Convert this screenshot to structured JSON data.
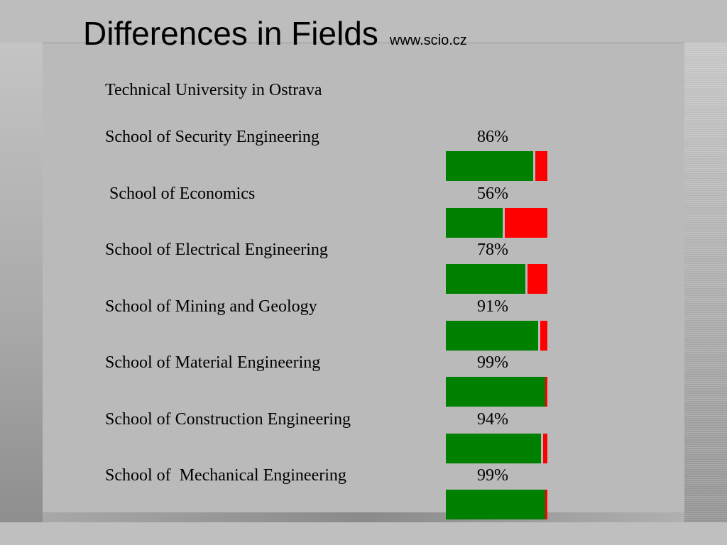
{
  "title": "Differences in Fields",
  "source": "www.scio.cz",
  "university": "Technical University in Ostrava",
  "colors": {
    "pass": "#008000",
    "fail": "#ff0000",
    "background": "#bababa"
  },
  "chart_data": {
    "type": "bar",
    "title": "",
    "xlabel": "",
    "ylabel": "",
    "ylim": [
      0,
      100
    ],
    "categories": [
      "School of Security Engineering",
      " School of Economics",
      "School of Electrical Engineering",
      "School of Mining and Geology",
      "School of Material Engineering",
      "School of Construction Engineering",
      "School of  Mechanical Engineering"
    ],
    "values": [
      86,
      56,
      78,
      91,
      99,
      94,
      99
    ],
    "value_labels": [
      "86%",
      "56%",
      "78%",
      "91%",
      "99%",
      "94%",
      "99%"
    ]
  }
}
